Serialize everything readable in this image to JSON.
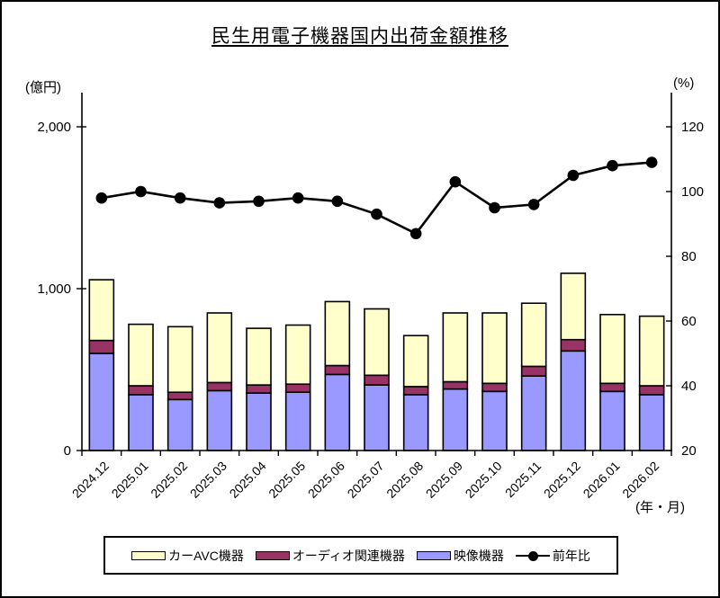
{
  "chart_data": {
    "type": "bar",
    "subtype": "stacked-bar-with-line",
    "title": "民生用電子機器国内出荷金額推移",
    "categories": [
      "2024.12",
      "2025.01",
      "2025.02",
      "2025.03",
      "2025.04",
      "2025.05",
      "2025.06",
      "2025.07",
      "2025.08",
      "2025.09",
      "2025.10",
      "2025.11",
      "2025.12",
      "2026.01",
      "2026.02"
    ],
    "series": [
      {
        "name": "映像機器",
        "type": "bar",
        "stack_order": 1,
        "color": "#9999FF",
        "values": [
          600,
          345,
          315,
          370,
          355,
          360,
          470,
          405,
          345,
          380,
          365,
          460,
          615,
          365,
          345
        ]
      },
      {
        "name": "オーディオ関連機器",
        "type": "bar",
        "stack_order": 2,
        "color": "#993366",
        "values": [
          80,
          55,
          45,
          50,
          50,
          50,
          55,
          60,
          50,
          45,
          50,
          60,
          70,
          50,
          55
        ]
      },
      {
        "name": "カーAVC機器",
        "type": "bar",
        "stack_order": 3,
        "color": "#FFFFCC",
        "values": [
          375,
          380,
          405,
          430,
          350,
          365,
          395,
          410,
          315,
          425,
          435,
          390,
          410,
          425,
          430
        ]
      },
      {
        "name": "前年比",
        "type": "line",
        "axis": "right",
        "color": "#000000",
        "values": [
          98,
          100,
          98,
          96.5,
          97,
          98,
          97,
          93,
          87,
          103,
          95,
          96,
          105,
          108,
          109
        ]
      }
    ],
    "bar_totals": [
      1055,
      780,
      765,
      850,
      755,
      775,
      920,
      875,
      710,
      850,
      850,
      910,
      1095,
      840,
      830
    ],
    "left_axis": {
      "unit": "(億円)",
      "min": 0,
      "max": 2200,
      "ticks": [
        {
          "v": 0,
          "label": "0"
        },
        {
          "v": 1000,
          "label": "1,000"
        },
        {
          "v": 2000,
          "label": "2,000"
        }
      ]
    },
    "right_axis": {
      "unit": "(%)",
      "min": 20,
      "max": 130,
      "ticks": [
        {
          "v": 20,
          "label": "20"
        },
        {
          "v": 40,
          "label": "40"
        },
        {
          "v": 60,
          "label": "60"
        },
        {
          "v": 80,
          "label": "80"
        },
        {
          "v": 100,
          "label": "100"
        },
        {
          "v": 120,
          "label": "120"
        }
      ]
    },
    "x_axis": {
      "unit": "(年・月)"
    },
    "grid": false,
    "legend_position": "bottom",
    "legend": [
      {
        "label": "カーAVC機器",
        "type": "bar",
        "color": "#FFFFCC"
      },
      {
        "label": "オーディオ関連機器",
        "type": "bar",
        "color": "#993366"
      },
      {
        "label": "映像機器",
        "type": "bar",
        "color": "#9999FF"
      },
      {
        "label": "前年比",
        "type": "line",
        "color": "#000000"
      }
    ]
  }
}
